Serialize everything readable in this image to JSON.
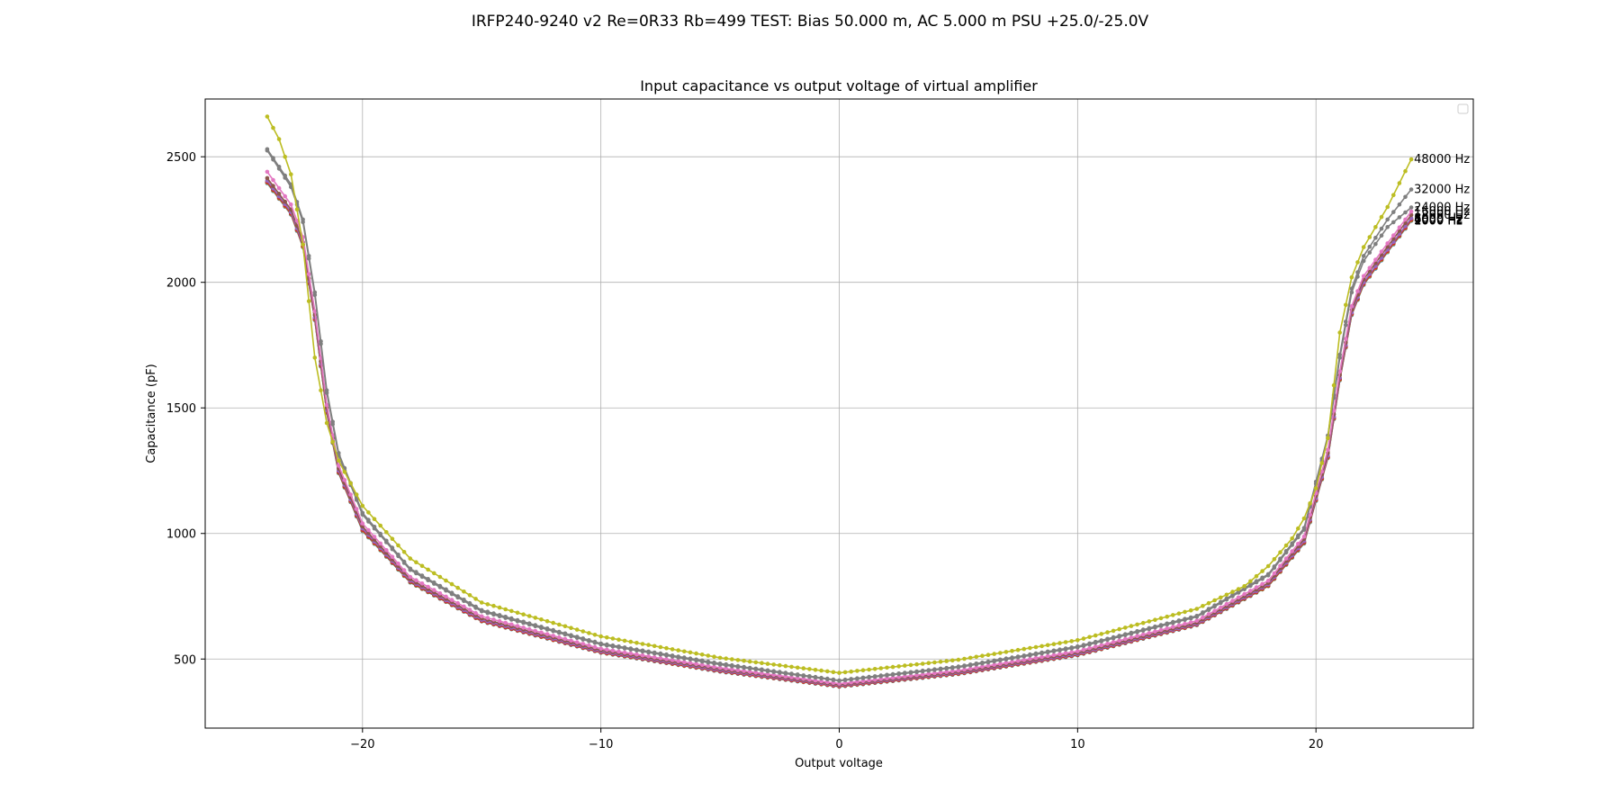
{
  "figure": {
    "suptitle": "IRFP240-9240 v2 Re=0R33 Rb=499 TEST: Bias 50.000 m, AC 5.000 m PSU +25.0/-25.0V"
  },
  "chart_data": {
    "type": "line",
    "title": "Input capacitance vs output voltage of virtual amplifier",
    "xlabel": "Output voltage",
    "ylabel": "Capacitance (pF)",
    "xlim": [
      -26.6,
      26.6
    ],
    "ylim": [
      225,
      2730
    ],
    "xticks": [
      -20,
      -10,
      0,
      10,
      20
    ],
    "yticks": [
      500,
      1000,
      1500,
      2000,
      2500
    ],
    "grid": true,
    "legend": "top-right (empty box)",
    "x_range": [
      -24.0,
      24.0
    ],
    "x_step": 0.25,
    "series": [
      {
        "name": "1000 Hz",
        "label": "1000 Hz",
        "color": "#1f77b4",
        "points": [
          [
            -24,
            2395
          ],
          [
            -23,
            2270
          ],
          [
            -22.5,
            2140
          ],
          [
            -22,
            1850
          ],
          [
            -21.5,
            1480
          ],
          [
            -21,
            1240
          ],
          [
            -20,
            1010
          ],
          [
            -18,
            805
          ],
          [
            -15,
            650
          ],
          [
            -10,
            525
          ],
          [
            -5,
            450
          ],
          [
            0,
            390
          ],
          [
            5,
            440
          ],
          [
            10,
            515
          ],
          [
            15,
            635
          ],
          [
            18,
            790
          ],
          [
            19.5,
            960
          ],
          [
            20.5,
            1300
          ],
          [
            21,
            1610
          ],
          [
            21.5,
            1870
          ],
          [
            22,
            1990
          ],
          [
            23,
            2120
          ],
          [
            24,
            2245
          ]
        ]
      },
      {
        "name": "2000 Hz",
        "label": "2000 Hz",
        "color": "#ff7f0e",
        "points": [
          [
            -24,
            2397
          ],
          [
            -23,
            2272
          ],
          [
            -22.5,
            2142
          ],
          [
            -22,
            1852
          ],
          [
            -21.5,
            1482
          ],
          [
            -21,
            1242
          ],
          [
            -20,
            1012
          ],
          [
            -18,
            806
          ],
          [
            -15,
            651
          ],
          [
            -10,
            526
          ],
          [
            -5,
            451
          ],
          [
            0,
            391
          ],
          [
            5,
            441
          ],
          [
            10,
            516
          ],
          [
            15,
            636
          ],
          [
            18,
            791
          ],
          [
            19.5,
            962
          ],
          [
            20.5,
            1302
          ],
          [
            21,
            1612
          ],
          [
            21.5,
            1872
          ],
          [
            22,
            1992
          ],
          [
            23,
            2122
          ],
          [
            24,
            2247
          ]
        ]
      },
      {
        "name": "4000 Hz",
        "label": "4000 Hz",
        "color": "#2ca02c",
        "points": [
          [
            -24,
            2399
          ],
          [
            -23,
            2274
          ],
          [
            -22.5,
            2144
          ],
          [
            -22,
            1854
          ],
          [
            -21.5,
            1484
          ],
          [
            -21,
            1244
          ],
          [
            -20,
            1014
          ],
          [
            -18,
            807
          ],
          [
            -15,
            652
          ],
          [
            -10,
            527
          ],
          [
            -5,
            452
          ],
          [
            0,
            392
          ],
          [
            5,
            442
          ],
          [
            10,
            517
          ],
          [
            15,
            637
          ],
          [
            18,
            792
          ],
          [
            19.5,
            964
          ],
          [
            20.5,
            1304
          ],
          [
            21,
            1614
          ],
          [
            21.5,
            1874
          ],
          [
            22,
            1994
          ],
          [
            23,
            2124
          ],
          [
            24,
            2249
          ]
        ]
      },
      {
        "name": "6000 Hz",
        "label": "6000 Hz",
        "color": "#d62728",
        "points": [
          [
            -24,
            2400
          ],
          [
            -23,
            2275
          ],
          [
            -22.5,
            2145
          ],
          [
            -22,
            1855
          ],
          [
            -21.5,
            1485
          ],
          [
            -21,
            1245
          ],
          [
            -20,
            1015
          ],
          [
            -18,
            808
          ],
          [
            -15,
            652
          ],
          [
            -10,
            527
          ],
          [
            -5,
            452
          ],
          [
            0,
            392
          ],
          [
            5,
            442
          ],
          [
            10,
            517
          ],
          [
            15,
            637
          ],
          [
            18,
            793
          ],
          [
            19.5,
            965
          ],
          [
            20.5,
            1305
          ],
          [
            21,
            1615
          ],
          [
            21.5,
            1875
          ],
          [
            22,
            1995
          ],
          [
            23,
            2125
          ],
          [
            24,
            2250
          ]
        ]
      },
      {
        "name": "8000 Hz",
        "label": "8000 Hz",
        "color": "#9467bd",
        "points": [
          [
            -24,
            2405
          ],
          [
            -23,
            2280
          ],
          [
            -22.5,
            2150
          ],
          [
            -22,
            1860
          ],
          [
            -21.5,
            1490
          ],
          [
            -21,
            1250
          ],
          [
            -20,
            1020
          ],
          [
            -18,
            812
          ],
          [
            -15,
            656
          ],
          [
            -10,
            530
          ],
          [
            -5,
            455
          ],
          [
            0,
            395
          ],
          [
            5,
            445
          ],
          [
            10,
            520
          ],
          [
            15,
            640
          ],
          [
            18,
            797
          ],
          [
            19.5,
            970
          ],
          [
            20.5,
            1310
          ],
          [
            21,
            1620
          ],
          [
            21.5,
            1880
          ],
          [
            22,
            2000
          ],
          [
            23,
            2130
          ],
          [
            24,
            2255
          ]
        ]
      },
      {
        "name": "12000 Hz",
        "label": "12000 Hz",
        "color": "#8c564b",
        "points": [
          [
            -24,
            2415
          ],
          [
            -23,
            2290
          ],
          [
            -22.5,
            2160
          ],
          [
            -22,
            1870
          ],
          [
            -21.5,
            1500
          ],
          [
            -21,
            1258
          ],
          [
            -20,
            1028
          ],
          [
            -18,
            818
          ],
          [
            -15,
            662
          ],
          [
            -10,
            535
          ],
          [
            -5,
            460
          ],
          [
            0,
            398
          ],
          [
            5,
            449
          ],
          [
            10,
            525
          ],
          [
            15,
            645
          ],
          [
            18,
            803
          ],
          [
            19.5,
            978
          ],
          [
            20.5,
            1320
          ],
          [
            21,
            1630
          ],
          [
            21.5,
            1890
          ],
          [
            22,
            2012
          ],
          [
            23,
            2142
          ],
          [
            24,
            2268
          ]
        ]
      },
      {
        "name": "16000 Hz",
        "label": "16000 Hz",
        "color": "#e377c2",
        "points": [
          [
            -24,
            2440
          ],
          [
            -23,
            2310
          ],
          [
            -22.5,
            2180
          ],
          [
            -22,
            1885
          ],
          [
            -21.5,
            1512
          ],
          [
            -21,
            1270
          ],
          [
            -20,
            1040
          ],
          [
            -18,
            827
          ],
          [
            -15,
            670
          ],
          [
            -10,
            541
          ],
          [
            -5,
            465
          ],
          [
            0,
            402
          ],
          [
            5,
            454
          ],
          [
            10,
            531
          ],
          [
            15,
            652
          ],
          [
            18,
            812
          ],
          [
            19.5,
            988
          ],
          [
            20.5,
            1333
          ],
          [
            21,
            1645
          ],
          [
            21.5,
            1905
          ],
          [
            22,
            2025
          ],
          [
            23,
            2155
          ],
          [
            24,
            2282
          ]
        ]
      },
      {
        "name": "24000 Hz",
        "label": "24000 Hz",
        "color": "#7f7f7f",
        "points": [
          [
            -24,
            2525
          ],
          [
            -23,
            2380
          ],
          [
            -22.5,
            2240
          ],
          [
            -22,
            1950
          ],
          [
            -21.5,
            1560
          ],
          [
            -21,
            1310
          ],
          [
            -20,
            1075
          ],
          [
            -18,
            855
          ],
          [
            -15,
            690
          ],
          [
            -10,
            558
          ],
          [
            -5,
            478
          ],
          [
            0,
            413
          ],
          [
            5,
            467
          ],
          [
            10,
            546
          ],
          [
            15,
            668
          ],
          [
            18,
            833
          ],
          [
            19.5,
            1015
          ],
          [
            20.5,
            1380
          ],
          [
            21,
            1700
          ],
          [
            21.5,
            1960
          ],
          [
            22,
            2085
          ],
          [
            23,
            2220
          ],
          [
            24,
            2298
          ]
        ]
      },
      {
        "name": "32000 Hz",
        "label": "32000 Hz",
        "color": "#7f7f7f",
        "points": [
          [
            -24,
            2530
          ],
          [
            -23,
            2390
          ],
          [
            -22.5,
            2250
          ],
          [
            -22,
            1960
          ],
          [
            -21.5,
            1570
          ],
          [
            -21,
            1320
          ],
          [
            -20,
            1082
          ],
          [
            -18,
            860
          ],
          [
            -15,
            695
          ],
          [
            -10,
            562
          ],
          [
            -5,
            482
          ],
          [
            0,
            415
          ],
          [
            5,
            470
          ],
          [
            10,
            550
          ],
          [
            15,
            672
          ],
          [
            18,
            838
          ],
          [
            19.5,
            1022
          ],
          [
            20.5,
            1390
          ],
          [
            21,
            1712
          ],
          [
            21.5,
            1975
          ],
          [
            22,
            2105
          ],
          [
            23,
            2250
          ],
          [
            24,
            2370
          ]
        ]
      },
      {
        "name": "48000 Hz",
        "label": "48000 Hz",
        "color": "#bcbd22",
        "points": [
          [
            -24,
            2660
          ],
          [
            -23.5,
            2570
          ],
          [
            -23,
            2430
          ],
          [
            -22.5,
            2150
          ],
          [
            -22,
            1700
          ],
          [
            -21.5,
            1440
          ],
          [
            -21,
            1290
          ],
          [
            -20,
            1110
          ],
          [
            -18,
            900
          ],
          [
            -15,
            725
          ],
          [
            -10,
            590
          ],
          [
            -5,
            505
          ],
          [
            0,
            445
          ],
          [
            5,
            497
          ],
          [
            10,
            575
          ],
          [
            15,
            700
          ],
          [
            17,
            790
          ],
          [
            18,
            870
          ],
          [
            19,
            980
          ],
          [
            19.5,
            1060
          ],
          [
            20,
            1180
          ],
          [
            20.5,
            1380
          ],
          [
            21,
            1800
          ],
          [
            21.5,
            2020
          ],
          [
            22,
            2140
          ],
          [
            23,
            2300
          ],
          [
            24,
            2490
          ]
        ]
      }
    ]
  }
}
